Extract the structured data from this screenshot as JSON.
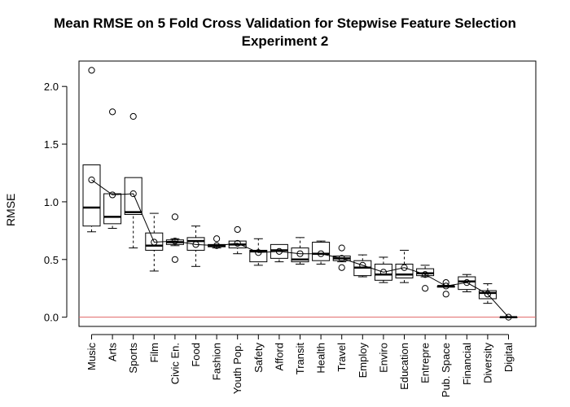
{
  "chart_data": {
    "type": "box",
    "title_line1": "Mean RMSE on 5 Fold Cross Validation for Stepwise Feature Selection",
    "title_line2": "Experiment 2",
    "ylabel": "RMSE",
    "xlabel": "",
    "ylim": [
      -0.08,
      2.22
    ],
    "yticks": [
      0.0,
      0.5,
      1.0,
      1.5,
      2.0
    ],
    "ytick_labels": [
      "0.0",
      "0.5",
      "1.0",
      "1.5",
      "2.0"
    ],
    "reference_line": {
      "y": 0.0,
      "color": "#e06666"
    },
    "categories": [
      "Music",
      "Arts",
      "Sports",
      "Film",
      "Civic En.",
      "Food",
      "Fashion",
      "Youth Pop.",
      "Safety",
      "Afford",
      "Transit",
      "Health",
      "Travel",
      "Employ",
      "Enviro",
      "Education",
      "Entrepre",
      "Pub. Space",
      "Financial",
      "Diversity",
      "Digital"
    ],
    "boxes": [
      {
        "wmin": 0.74,
        "q1": 0.79,
        "median": 0.95,
        "q3": 1.32,
        "wmax": 1.32,
        "outliers": [
          2.14
        ],
        "mean": 1.19
      },
      {
        "wmin": 0.77,
        "q1": 0.81,
        "median": 0.87,
        "q3": 1.07,
        "wmax": 1.07,
        "outliers": [
          1.78
        ],
        "mean": 1.06
      },
      {
        "wmin": 0.6,
        "q1": 0.89,
        "median": 0.91,
        "q3": 1.21,
        "wmax": 1.21,
        "outliers": [
          1.74
        ],
        "mean": 1.07
      },
      {
        "wmin": 0.4,
        "q1": 0.58,
        "median": 0.62,
        "q3": 0.73,
        "wmax": 0.9,
        "outliers": [],
        "mean": 0.65
      },
      {
        "wmin": 0.62,
        "q1": 0.63,
        "median": 0.65,
        "q3": 0.67,
        "wmax": 0.68,
        "outliers": [
          0.87,
          0.5
        ],
        "mean": 0.66
      },
      {
        "wmin": 0.44,
        "q1": 0.58,
        "median": 0.66,
        "q3": 0.69,
        "wmax": 0.79,
        "outliers": [],
        "mean": 0.63
      },
      {
        "wmin": 0.6,
        "q1": 0.61,
        "median": 0.62,
        "q3": 0.63,
        "wmax": 0.63,
        "outliers": [
          0.68
        ],
        "mean": 0.62
      },
      {
        "wmin": 0.55,
        "q1": 0.6,
        "median": 0.63,
        "q3": 0.66,
        "wmax": 0.66,
        "outliers": [
          0.76
        ],
        "mean": 0.64
      },
      {
        "wmin": 0.45,
        "q1": 0.48,
        "median": 0.57,
        "q3": 0.58,
        "wmax": 0.68,
        "outliers": [],
        "mean": 0.56
      },
      {
        "wmin": 0.48,
        "q1": 0.51,
        "median": 0.58,
        "q3": 0.63,
        "wmax": 0.63,
        "outliers": [],
        "mean": 0.57
      },
      {
        "wmin": 0.46,
        "q1": 0.48,
        "median": 0.5,
        "q3": 0.6,
        "wmax": 0.69,
        "outliers": [],
        "mean": 0.55
      },
      {
        "wmin": 0.46,
        "q1": 0.49,
        "median": 0.55,
        "q3": 0.65,
        "wmax": 0.66,
        "outliers": [],
        "mean": 0.55
      },
      {
        "wmin": 0.48,
        "q1": 0.49,
        "median": 0.51,
        "q3": 0.53,
        "wmax": 0.53,
        "outliers": [
          0.6,
          0.43
        ],
        "mean": 0.51
      },
      {
        "wmin": 0.35,
        "q1": 0.36,
        "median": 0.43,
        "q3": 0.49,
        "wmax": 0.54,
        "outliers": [],
        "mean": 0.45
      },
      {
        "wmin": 0.3,
        "q1": 0.32,
        "median": 0.37,
        "q3": 0.46,
        "wmax": 0.52,
        "outliers": [],
        "mean": 0.39
      },
      {
        "wmin": 0.3,
        "q1": 0.34,
        "median": 0.37,
        "q3": 0.46,
        "wmax": 0.58,
        "outliers": [],
        "mean": 0.43
      },
      {
        "wmin": 0.35,
        "q1": 0.36,
        "median": 0.38,
        "q3": 0.42,
        "wmax": 0.45,
        "outliers": [
          0.25
        ],
        "mean": 0.37
      },
      {
        "wmin": 0.26,
        "q1": 0.26,
        "median": 0.27,
        "q3": 0.27,
        "wmax": 0.27,
        "outliers": [
          0.3,
          0.2
        ],
        "mean": 0.27
      },
      {
        "wmin": 0.22,
        "q1": 0.24,
        "median": 0.31,
        "q3": 0.35,
        "wmax": 0.37,
        "outliers": [],
        "mean": 0.3
      },
      {
        "wmin": 0.12,
        "q1": 0.16,
        "median": 0.21,
        "q3": 0.23,
        "wmax": 0.29,
        "outliers": [],
        "mean": 0.2
      },
      {
        "wmin": 0.0,
        "q1": 0.0,
        "median": 0.0,
        "q3": 0.0,
        "wmax": 0.0,
        "outliers": [],
        "mean": 0.0
      }
    ]
  }
}
